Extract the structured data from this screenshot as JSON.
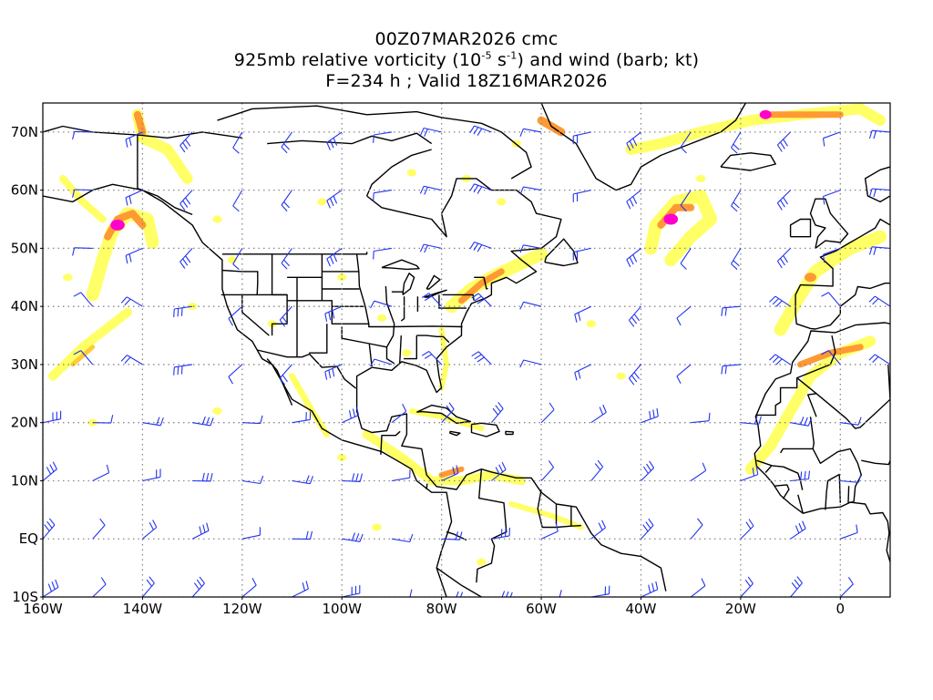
{
  "title": {
    "line1": "00Z07MAR2026 cmc",
    "line2_pre": "925mb relative vorticity (10",
    "line2_exp1": "-5",
    "line2_mid": " s",
    "line2_exp2": "-1",
    "line2_post": ") and wind (barb; kt)",
    "line3": "F=234 h ; Valid 18Z16MAR2026"
  },
  "axes": {
    "lat_labels": [
      "70N",
      "60N",
      "50N",
      "40N",
      "30N",
      "20N",
      "10N",
      "EQ",
      "10S"
    ],
    "lon_labels": [
      "160W",
      "140W",
      "120W",
      "100W",
      "80W",
      "60W",
      "40W",
      "20W",
      "0"
    ],
    "lat_values": [
      70,
      60,
      50,
      40,
      30,
      20,
      10,
      0,
      -10
    ],
    "lon_values": [
      -160,
      -140,
      -120,
      -100,
      -80,
      -60,
      -40,
      -20,
      0
    ],
    "lon_range": [
      -160,
      10
    ],
    "lat_range": [
      -10,
      75
    ],
    "grid": "dotted"
  },
  "colors": {
    "shade_light": "#ffff66",
    "shade_mid": "#ffcc33",
    "shade_orange": "#ff9933",
    "shade_red": "#ff5533",
    "shade_max": "#ff00cc",
    "barb": "#2233ee",
    "coast": "#000000"
  },
  "vorticity_features": [
    {
      "name": "gulf-of-alaska-low",
      "lon": -145,
      "lat": 54,
      "intensity": "max"
    },
    {
      "name": "iceland-low",
      "lon": -35,
      "lat": 55,
      "intensity": "max"
    },
    {
      "name": "greenland-east",
      "lon": -15,
      "lat": 72,
      "intensity": "max"
    },
    {
      "name": "iberia-low",
      "lon": -5,
      "lat": 45,
      "intensity": "high"
    },
    {
      "name": "northeast-us-front",
      "lon": -70,
      "lat": 45,
      "intensity": "high"
    }
  ],
  "wind_barbs_note": "wind barbs (kt) at regular grid points"
}
